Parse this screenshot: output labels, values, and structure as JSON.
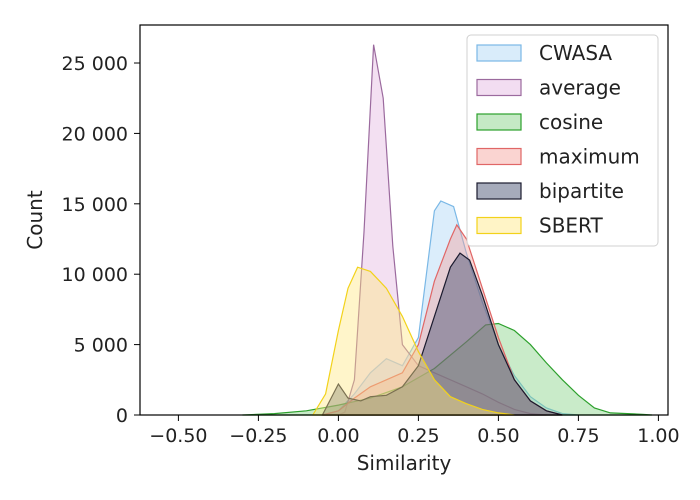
{
  "chart_data": {
    "type": "area",
    "title": "",
    "xlabel": "Similarity",
    "ylabel": "Count",
    "xlim": [
      -0.62,
      1.03
    ],
    "ylim": [
      0,
      27700
    ],
    "grid": false,
    "legend_position": "top-right",
    "x_ticks": [
      {
        "value": -0.5,
        "label": "−0.50"
      },
      {
        "value": -0.25,
        "label": "−0.25"
      },
      {
        "value": 0.0,
        "label": "0.00"
      },
      {
        "value": 0.25,
        "label": "0.25"
      },
      {
        "value": 0.5,
        "label": "0.50"
      },
      {
        "value": 0.75,
        "label": "0.75"
      },
      {
        "value": 1.0,
        "label": "1.00"
      }
    ],
    "y_ticks": [
      {
        "value": 0,
        "label": "0"
      },
      {
        "value": 5000,
        "label": "5 000"
      },
      {
        "value": 10000,
        "label": "10 000"
      },
      {
        "value": 15000,
        "label": "15 000"
      },
      {
        "value": 20000,
        "label": "20 000"
      },
      {
        "value": 25000,
        "label": "25 000"
      }
    ],
    "series": [
      {
        "name": "CWASA",
        "fill": "#aad4f5",
        "stroke": "#7ab8e6",
        "points": [
          [
            -0.05,
            0
          ],
          [
            0.0,
            300
          ],
          [
            0.05,
            1500
          ],
          [
            0.1,
            3000
          ],
          [
            0.15,
            4000
          ],
          [
            0.2,
            3500
          ],
          [
            0.25,
            5500
          ],
          [
            0.3,
            14500
          ],
          [
            0.32,
            15200
          ],
          [
            0.36,
            14800
          ],
          [
            0.4,
            11500
          ],
          [
            0.45,
            8000
          ],
          [
            0.5,
            5000
          ],
          [
            0.55,
            2800
          ],
          [
            0.6,
            1300
          ],
          [
            0.65,
            500
          ],
          [
            0.7,
            100
          ],
          [
            0.75,
            0
          ]
        ]
      },
      {
        "name": "average",
        "fill": "#e3b4e0",
        "stroke": "#9b6a9e",
        "points": [
          [
            0.0,
            0
          ],
          [
            0.02,
            200
          ],
          [
            0.05,
            2500
          ],
          [
            0.08,
            13000
          ],
          [
            0.11,
            26300
          ],
          [
            0.14,
            22500
          ],
          [
            0.17,
            12000
          ],
          [
            0.2,
            5000
          ],
          [
            0.25,
            3500
          ],
          [
            0.3,
            3000
          ],
          [
            0.35,
            2500
          ],
          [
            0.4,
            2000
          ],
          [
            0.45,
            1500
          ],
          [
            0.5,
            900
          ],
          [
            0.55,
            400
          ],
          [
            0.6,
            100
          ],
          [
            0.65,
            0
          ]
        ]
      },
      {
        "name": "cosine",
        "fill": "#7fcf7f",
        "stroke": "#2ca02c",
        "points": [
          [
            -0.3,
            0
          ],
          [
            -0.2,
            100
          ],
          [
            -0.1,
            300
          ],
          [
            0.0,
            700
          ],
          [
            0.1,
            1200
          ],
          [
            0.2,
            2000
          ],
          [
            0.3,
            3300
          ],
          [
            0.4,
            5200
          ],
          [
            0.46,
            6400
          ],
          [
            0.5,
            6500
          ],
          [
            0.55,
            6000
          ],
          [
            0.6,
            5000
          ],
          [
            0.65,
            3700
          ],
          [
            0.7,
            2500
          ],
          [
            0.75,
            1400
          ],
          [
            0.8,
            500
          ],
          [
            0.85,
            150
          ],
          [
            0.95,
            50
          ],
          [
            0.98,
            0
          ]
        ]
      },
      {
        "name": "maximum",
        "fill": "#f4a09a",
        "stroke": "#e06666",
        "points": [
          [
            -0.05,
            0
          ],
          [
            0.0,
            300
          ],
          [
            0.05,
            1200
          ],
          [
            0.1,
            2000
          ],
          [
            0.15,
            2500
          ],
          [
            0.2,
            3000
          ],
          [
            0.25,
            5000
          ],
          [
            0.3,
            9500
          ],
          [
            0.35,
            12500
          ],
          [
            0.37,
            13500
          ],
          [
            0.4,
            12500
          ],
          [
            0.45,
            9000
          ],
          [
            0.5,
            5500
          ],
          [
            0.55,
            2500
          ],
          [
            0.6,
            1000
          ],
          [
            0.65,
            300
          ],
          [
            0.7,
            0
          ]
        ]
      },
      {
        "name": "bipartite",
        "fill": "#3a4468",
        "stroke": "#1a1a2e",
        "points": [
          [
            -0.05,
            0
          ],
          [
            0.0,
            2200
          ],
          [
            0.03,
            1200
          ],
          [
            0.07,
            1000
          ],
          [
            0.1,
            1300
          ],
          [
            0.15,
            1400
          ],
          [
            0.2,
            2000
          ],
          [
            0.25,
            3500
          ],
          [
            0.3,
            7000
          ],
          [
            0.35,
            10500
          ],
          [
            0.38,
            11500
          ],
          [
            0.41,
            11000
          ],
          [
            0.45,
            8500
          ],
          [
            0.5,
            5000
          ],
          [
            0.55,
            2500
          ],
          [
            0.6,
            1000
          ],
          [
            0.65,
            300
          ],
          [
            0.7,
            0
          ]
        ]
      },
      {
        "name": "SBERT",
        "fill": "#ffe680",
        "stroke": "#f2d21a",
        "points": [
          [
            -0.08,
            0
          ],
          [
            -0.04,
            1500
          ],
          [
            0.0,
            6000
          ],
          [
            0.03,
            9000
          ],
          [
            0.06,
            10500
          ],
          [
            0.1,
            10200
          ],
          [
            0.15,
            9000
          ],
          [
            0.2,
            7000
          ],
          [
            0.25,
            4500
          ],
          [
            0.3,
            2500
          ],
          [
            0.35,
            1300
          ],
          [
            0.4,
            800
          ],
          [
            0.45,
            400
          ],
          [
            0.5,
            150
          ],
          [
            0.55,
            0
          ]
        ]
      }
    ]
  }
}
